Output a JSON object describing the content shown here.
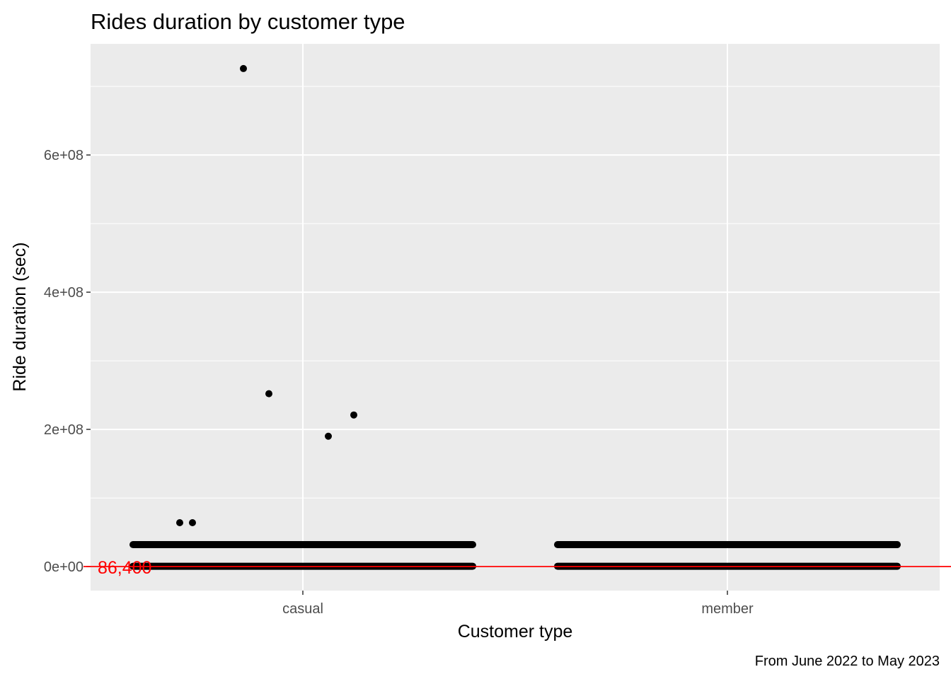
{
  "chart_data": {
    "type": "scatter",
    "title": "Rides duration by customer type",
    "xlabel": "Customer type",
    "ylabel": "Ride duration (sec)",
    "caption": "From June 2022 to May 2023",
    "categories": [
      "casual",
      "member"
    ],
    "y_ticks": [
      {
        "value": 0,
        "label": "0e+00"
      },
      {
        "value": 200000000,
        "label": "2e+08"
      },
      {
        "value": 400000000,
        "label": "4e+08"
      },
      {
        "value": 600000000,
        "label": "6e+08"
      }
    ],
    "ylim": [
      -35000000,
      762000000
    ],
    "grid": true,
    "reference_line": {
      "value": 86400,
      "label": "86,400",
      "color": "#ff0000"
    },
    "dense_bands": [
      {
        "category": "casual",
        "y": 32000000,
        "x_from": -0.4,
        "x_to": 0.4
      },
      {
        "category": "casual",
        "y": 500000,
        "x_from": -0.4,
        "x_to": 0.4
      },
      {
        "category": "member",
        "y": 32000000,
        "x_from": -0.4,
        "x_to": 0.4
      },
      {
        "category": "member",
        "y": 500000,
        "x_from": -0.4,
        "x_to": 0.4
      }
    ],
    "points": [
      {
        "category": "casual",
        "jitter": -0.29,
        "y": 64000000
      },
      {
        "category": "casual",
        "jitter": -0.26,
        "y": 64000000
      },
      {
        "category": "casual",
        "jitter": -0.14,
        "y": 726000000
      },
      {
        "category": "casual",
        "jitter": -0.08,
        "y": 252000000
      },
      {
        "category": "casual",
        "jitter": 0.06,
        "y": 190000000
      },
      {
        "category": "casual",
        "jitter": 0.12,
        "y": 221000000
      }
    ]
  }
}
